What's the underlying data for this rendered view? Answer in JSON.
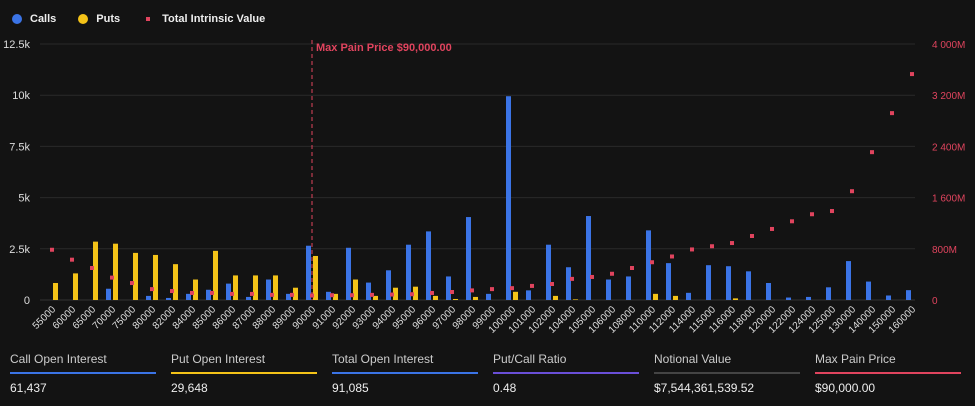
{
  "legend": {
    "calls": "Calls",
    "puts": "Puts",
    "intrinsic": "Total Intrinsic Value"
  },
  "colors": {
    "calls": "#3b74e6",
    "puts": "#f4c318",
    "intrinsic": "#e0445e",
    "grid": "#2a2a2a"
  },
  "chart_data": {
    "type": "bar",
    "categories": [
      "55000",
      "60000",
      "65000",
      "70000",
      "75000",
      "80000",
      "82000",
      "84000",
      "85000",
      "86000",
      "87000",
      "88000",
      "89000",
      "90000",
      "91000",
      "92000",
      "93000",
      "94000",
      "95000",
      "96000",
      "97000",
      "98000",
      "99000",
      "100000",
      "101000",
      "102000",
      "104000",
      "105000",
      "106000",
      "108000",
      "110000",
      "112000",
      "114000",
      "115000",
      "116000",
      "118000",
      "120000",
      "122000",
      "124000",
      "125000",
      "130000",
      "140000",
      "150000",
      "160000"
    ],
    "series": [
      {
        "name": "Calls",
        "axis": "left",
        "values": [
          0,
          0,
          0,
          550,
          0,
          200,
          100,
          300,
          500,
          800,
          150,
          1000,
          300,
          2650,
          400,
          2550,
          850,
          1450,
          2700,
          3350,
          1150,
          4050,
          300,
          9950,
          470,
          2700,
          1600,
          4100,
          1000,
          1150,
          3400,
          1800,
          350,
          1700,
          1650,
          1400,
          830,
          120,
          150,
          620,
          1900,
          900,
          220,
          480
        ]
      },
      {
        "name": "Puts",
        "axis": "left",
        "values": [
          830,
          1300,
          2850,
          2750,
          2300,
          2200,
          1750,
          1000,
          2400,
          1200,
          1200,
          1200,
          600,
          2150,
          300,
          1000,
          200,
          600,
          650,
          200,
          50,
          150,
          0,
          400,
          0,
          200,
          30,
          0,
          0,
          0,
          300,
          200,
          0,
          0,
          80,
          0,
          0,
          0,
          0,
          0,
          0,
          0,
          0,
          0
        ]
      },
      {
        "name": "Total Intrinsic Value",
        "axis": "right",
        "type": "scatter",
        "values": [
          785,
          630,
          500,
          350,
          265,
          170,
          140,
          110,
          110,
          95,
          95,
          80,
          80,
          70,
          75,
          75,
          80,
          85,
          90,
          110,
          125,
          150,
          170,
          185,
          220,
          250,
          330,
          360,
          410,
          500,
          590,
          680,
          790,
          840,
          890,
          1000,
          1110,
          1230,
          1340,
          1390,
          1700,
          2310,
          2920,
          3530
        ]
      }
    ],
    "y_left": {
      "range": [
        0,
        12500
      ],
      "ticks": [
        "0",
        "2.5k",
        "5k",
        "7.5k",
        "10k",
        "12.5k"
      ]
    },
    "y_right": {
      "range": [
        0,
        4000
      ],
      "unit": "M",
      "ticks": [
        "0",
        "800M",
        "1 600M",
        "2 400M",
        "3 200M",
        "4 000M"
      ]
    },
    "grid": "horizontal",
    "legend_position": "top-left",
    "annotation": {
      "label": "Max Pain Price $90,000.00",
      "at": "90000"
    }
  },
  "stats": [
    {
      "label": "Call Open Interest",
      "value": "61,437",
      "color": "#3b74e6"
    },
    {
      "label": "Put Open Interest",
      "value": "29,648",
      "color": "#f4c318"
    },
    {
      "label": "Total Open Interest",
      "value": "91,085",
      "color": "#3b74e6"
    },
    {
      "label": "Put/Call Ratio",
      "value": "0.48",
      "color": "#6a4fd8"
    },
    {
      "label": "Notional Value",
      "value": "$7,544,361,539.52",
      "color": "#444444"
    },
    {
      "label": "Max Pain Price",
      "value": "$90,000.00",
      "color": "#e0445e"
    }
  ]
}
